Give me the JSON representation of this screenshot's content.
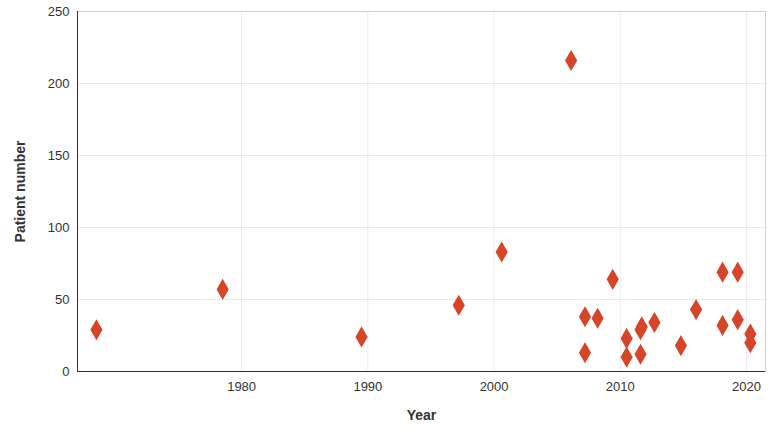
{
  "chart_data": {
    "type": "scatter",
    "x_label": "Year",
    "y_label": "Patient number",
    "x": [
      1968.5,
      1978.5,
      1989.5,
      1997.2,
      2000.6,
      2006.1,
      2007.2,
      2007.2,
      2008.2,
      2009.4,
      2010.5,
      2010.5,
      2011.6,
      2011.7,
      2011.6,
      2012.7,
      2014.8,
      2016.0,
      2018.1,
      2018.1,
      2019.3,
      2019.3,
      2020.3,
      2020.3
    ],
    "values": [
      29,
      57,
      24,
      46,
      83,
      216,
      38,
      13,
      37,
      64,
      23,
      10,
      29,
      31,
      12,
      34,
      18,
      43,
      69,
      32,
      69,
      36,
      26,
      20
    ],
    "color": "#d64527",
    "marker": "diamond",
    "xlim": [
      1967,
      2021.5
    ],
    "xticks": [
      1980,
      1990,
      2000,
      2010,
      2020
    ],
    "ylim": [
      0,
      250
    ],
    "yticks": [
      0,
      50,
      100,
      150,
      200,
      250
    ],
    "grid": true
  }
}
